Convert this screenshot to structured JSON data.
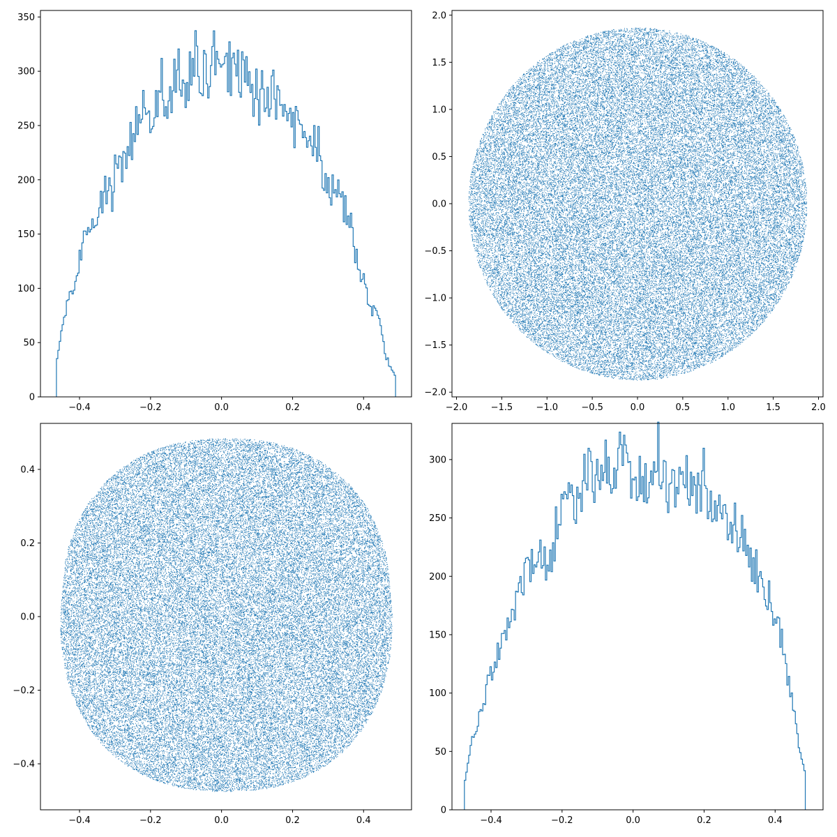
{
  "accent_color": "#1f77b4",
  "chart_data": [
    {
      "type": "histogram",
      "position": "top-left",
      "title": "",
      "xlabel": "",
      "ylabel": "",
      "xlim": [
        -0.51,
        0.535
      ],
      "ylim": [
        0,
        356
      ],
      "xticks": [
        -0.4,
        -0.2,
        0.0,
        0.2,
        0.4
      ],
      "xtick_labels": [
        "−0.4",
        "−0.2",
        "0.0",
        "0.2",
        "0.4"
      ],
      "yticks": [
        0,
        50,
        100,
        150,
        200,
        250,
        300,
        350
      ],
      "ytick_labels": [
        "0",
        "50",
        "100",
        "150",
        "200",
        "250",
        "300",
        "350"
      ],
      "bin_range": [
        -0.465,
        0.49
      ],
      "bin_count": 240,
      "counts": [
        35,
        59,
        73,
        94,
        100,
        110,
        135,
        146,
        156,
        160,
        165,
        176,
        194,
        185,
        188,
        226,
        210,
        222,
        240,
        238,
        250,
        258,
        264,
        245,
        256,
        268,
        296,
        270,
        262,
        287,
        304,
        292,
        276,
        288,
        305,
        316,
        300,
        294,
        289,
        336,
        298,
        296,
        288,
        305,
        301,
        307,
        289,
        297,
        283,
        276,
        285,
        271,
        290,
        262,
        286,
        278,
        268,
        258,
        257,
        250,
        245,
        256,
        254,
        233,
        223,
        237,
        227,
        205,
        201,
        193,
        183,
        184,
        178,
        168,
        158,
        132,
        120,
        112,
        95,
        83,
        76,
        70,
        49,
        35,
        27,
        20
      ],
      "grid": false,
      "line_color": "#1f77b4"
    },
    {
      "type": "scatter",
      "position": "top-right",
      "title": "",
      "xlabel": "",
      "ylabel": "",
      "xlim": [
        -2.05,
        2.05
      ],
      "ylim": [
        -2.05,
        2.05
      ],
      "xticks": [
        -2.0,
        -1.5,
        -1.0,
        -0.5,
        0.0,
        0.5,
        1.0,
        1.5,
        2.0
      ],
      "xtick_labels": [
        "−2.0",
        "−1.5",
        "−1.0",
        "−0.5",
        "0.0",
        "0.5",
        "1.0",
        "1.5",
        "2.0"
      ],
      "yticks": [
        -2.0,
        -1.5,
        -1.0,
        -0.5,
        0.0,
        0.5,
        1.0,
        1.5,
        2.0
      ],
      "ytick_labels": [
        "−2.0",
        "−1.5",
        "−1.0",
        "−0.5",
        "0.0",
        "0.5",
        "1.0",
        "1.5",
        "2.0"
      ],
      "shape": "disk",
      "center": [
        0.0,
        0.0
      ],
      "radius": 1.87,
      "n_points": 60000,
      "grid": false,
      "marker_color": "#1f77b4"
    },
    {
      "type": "scatter",
      "position": "bottom-left",
      "title": "",
      "xlabel": "",
      "ylabel": "",
      "xlim": [
        -0.51,
        0.535
      ],
      "ylim": [
        -0.525,
        0.525
      ],
      "xticks": [
        -0.4,
        -0.2,
        0.0,
        0.2,
        0.4
      ],
      "xtick_labels": [
        "−0.4",
        "−0.2",
        "0.0",
        "0.2",
        "0.4"
      ],
      "yticks": [
        -0.4,
        -0.2,
        0.0,
        0.2,
        0.4
      ],
      "ytick_labels": [
        "−0.4",
        "−0.2",
        "0.0",
        "0.2",
        "0.4"
      ],
      "shape": "rounded-blob",
      "x_extent": [
        -0.465,
        0.49
      ],
      "y_extent": [
        -0.475,
        0.485
      ],
      "n_points": 60000,
      "grid": false,
      "marker_color": "#1f77b4"
    },
    {
      "type": "histogram",
      "position": "bottom-right",
      "title": "",
      "xlabel": "",
      "ylabel": "",
      "xlim": [
        -0.51,
        0.535
      ],
      "ylim": [
        0,
        331
      ],
      "xticks": [
        -0.4,
        -0.2,
        0.0,
        0.2,
        0.4
      ],
      "xtick_labels": [
        "−0.4",
        "−0.2",
        "0.0",
        "0.2",
        "0.4"
      ],
      "yticks": [
        0,
        50,
        100,
        150,
        200,
        250,
        300
      ],
      "ytick_labels": [
        "0",
        "50",
        "100",
        "150",
        "200",
        "250",
        "300"
      ],
      "bin_range": [
        -0.475,
        0.485
      ],
      "bin_count": 240,
      "counts": [
        25,
        50,
        68,
        82,
        95,
        110,
        125,
        140,
        150,
        160,
        165,
        175,
        190,
        200,
        215,
        230,
        212,
        205,
        218,
        240,
        262,
        290,
        270,
        255,
        260,
        285,
        290,
        280,
        276,
        288,
        295,
        286,
        300,
        305,
        290,
        286,
        280,
        285,
        279,
        300,
        316,
        290,
        285,
        270,
        280,
        300,
        295,
        285,
        275,
        262,
        289,
        270,
        258,
        250,
        265,
        243,
        250,
        240,
        238,
        228,
        215,
        205,
        195,
        187,
        178,
        165,
        150,
        130,
        100,
        78,
        50,
        34
      ],
      "grid": false,
      "line_color": "#1f77b4"
    }
  ]
}
